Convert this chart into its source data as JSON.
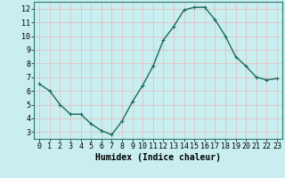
{
  "x": [
    0,
    1,
    2,
    3,
    4,
    5,
    6,
    7,
    8,
    9,
    10,
    11,
    12,
    13,
    14,
    15,
    16,
    17,
    18,
    19,
    20,
    21,
    22,
    23
  ],
  "y": [
    6.5,
    6.0,
    5.0,
    4.3,
    4.3,
    3.6,
    3.1,
    2.8,
    3.8,
    5.2,
    6.4,
    7.8,
    9.7,
    10.7,
    11.9,
    12.1,
    12.1,
    11.2,
    10.0,
    8.5,
    7.8,
    7.0,
    6.8,
    6.9
  ],
  "line_color": "#1a6b5a",
  "marker": "+",
  "marker_size": 3,
  "bg_color": "#c8eef0",
  "grid_color": "#e8b8b8",
  "xlabel": "Humidex (Indice chaleur)",
  "ylim": [
    2.5,
    12.5
  ],
  "xlim": [
    -0.5,
    23.5
  ],
  "yticks": [
    3,
    4,
    5,
    6,
    7,
    8,
    9,
    10,
    11,
    12
  ],
  "xticks": [
    0,
    1,
    2,
    3,
    4,
    5,
    6,
    7,
    8,
    9,
    10,
    11,
    12,
    13,
    14,
    15,
    16,
    17,
    18,
    19,
    20,
    21,
    22,
    23
  ],
  "xlabel_fontsize": 7,
  "tick_fontsize": 6,
  "line_width": 1.0
}
